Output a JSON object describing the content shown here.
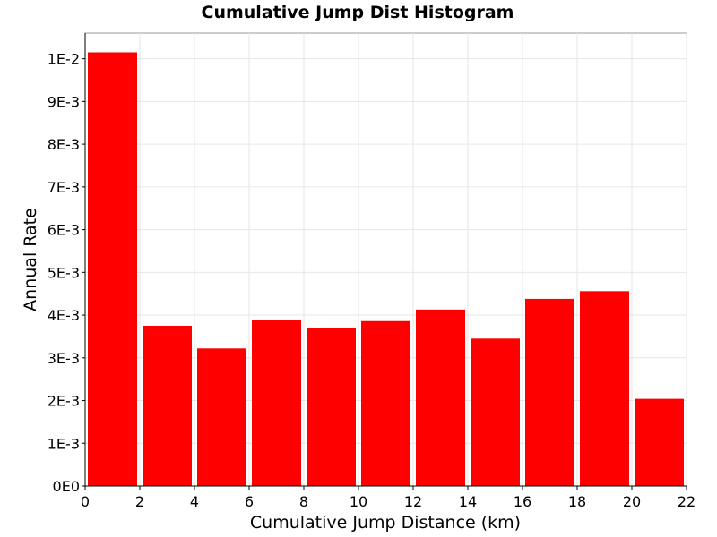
{
  "chart_data": {
    "type": "bar",
    "title": "Cumulative Jump Dist Histogram",
    "xlabel": "Cumulative Jump Distance (km)",
    "ylabel": "Annual Rate",
    "bar_color": "#ff0000",
    "bin_width": 2,
    "x": [
      1,
      3,
      5,
      7,
      9,
      11,
      13,
      15,
      17,
      19,
      21
    ],
    "values": [
      0.01015,
      0.00375,
      0.00322,
      0.00388,
      0.00369,
      0.00386,
      0.00413,
      0.00345,
      0.00438,
      0.00456,
      0.00204
    ],
    "xlim": [
      0,
      22
    ],
    "ylim": [
      0,
      0.0106
    ],
    "x_ticks": [
      0,
      2,
      4,
      6,
      8,
      10,
      12,
      14,
      16,
      18,
      20,
      22
    ],
    "x_tick_labels": [
      "0",
      "2",
      "4",
      "6",
      "8",
      "10",
      "12",
      "14",
      "16",
      "18",
      "20",
      "22"
    ],
    "y_ticks": [
      0,
      0.001,
      0.002,
      0.003,
      0.004,
      0.005,
      0.006,
      0.007,
      0.008,
      0.009,
      0.01
    ],
    "y_tick_labels": [
      "0E0",
      "1E-3",
      "2E-3",
      "3E-3",
      "4E-3",
      "5E-3",
      "6E-3",
      "7E-3",
      "8E-3",
      "9E-3",
      "1E-2"
    ],
    "grid": true,
    "legend": false
  }
}
